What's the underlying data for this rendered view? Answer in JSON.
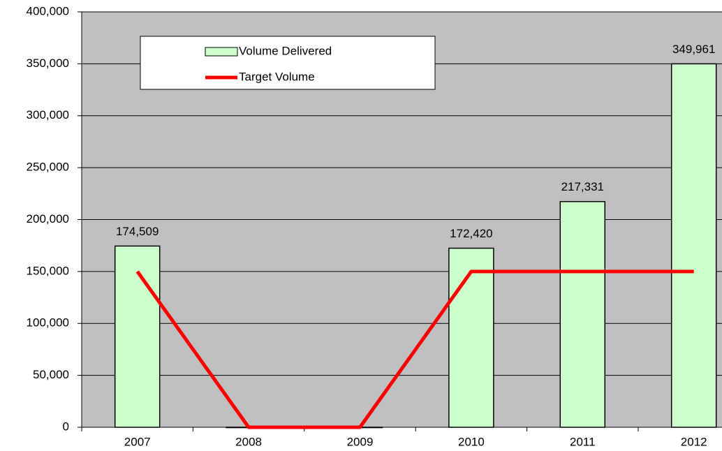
{
  "chart_data": {
    "type": "bar-line",
    "categories": [
      "2007",
      "2008",
      "2009",
      "2010",
      "2011",
      "2012"
    ],
    "series": [
      {
        "name": "Volume Delivered",
        "type": "bar",
        "color": "#ccffcc",
        "values": [
          174509,
          0,
          0,
          172420,
          217331,
          349961
        ],
        "value_labels": [
          "174,509",
          null,
          null,
          "172,420",
          "217,331",
          "349,961"
        ]
      },
      {
        "name": "Target Volume",
        "type": "line",
        "color": "#ff0000",
        "values": [
          150000,
          0,
          0,
          150000,
          150000,
          150000
        ]
      }
    ],
    "ylim": [
      0,
      400000
    ],
    "yticks": [
      0,
      {
        "value": 50000,
        "label": "50,000"
      },
      {
        "value": 100000,
        "label": "100,000"
      },
      {
        "value": 150000,
        "label": "150,000"
      },
      {
        "value": 200000,
        "label": "200,000"
      },
      {
        "value": 250000,
        "label": "250,000"
      },
      {
        "value": 300000,
        "label": "300,000"
      },
      {
        "value": 350000,
        "label": "350,000"
      },
      {
        "value": 400000,
        "label": "400,000"
      }
    ],
    "grid": true,
    "background": "#c0c0c0"
  }
}
